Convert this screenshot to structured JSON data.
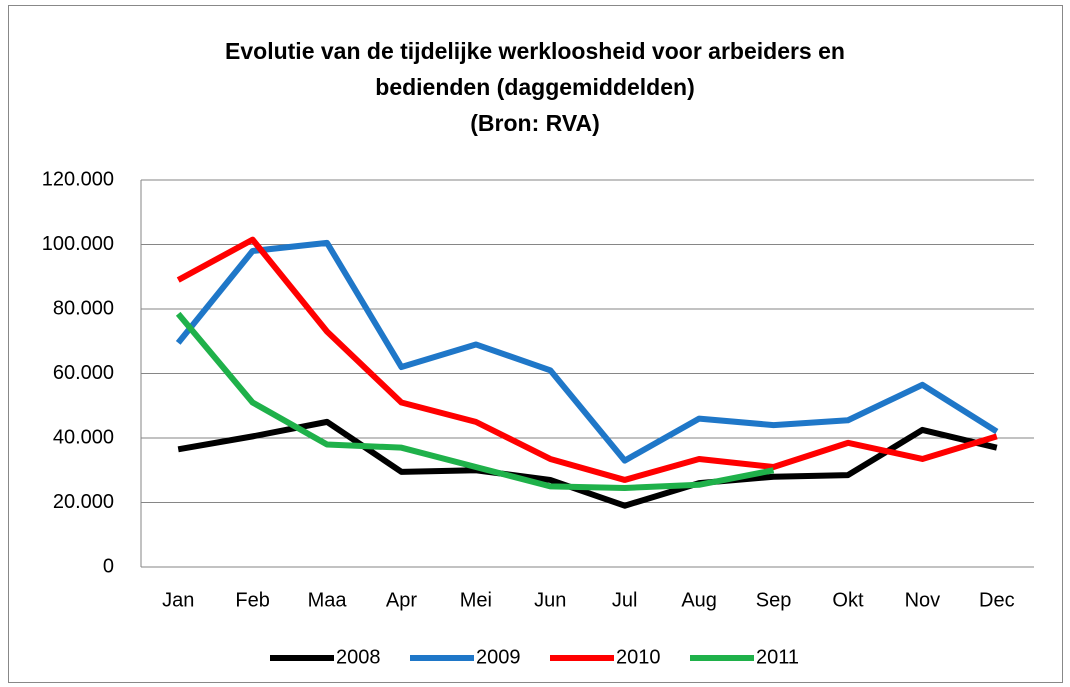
{
  "chart_data": {
    "type": "line",
    "title": "Evolutie van de tijdelijke werkloosheid voor arbeiders en bedienden (daggemiddelden)",
    "subtitle": "(Bron: RVA)",
    "categories": [
      "Jan",
      "Feb",
      "Maa",
      "Apr",
      "Mei",
      "Jun",
      "Jul",
      "Aug",
      "Sep",
      "Okt",
      "Nov",
      "Dec"
    ],
    "series": [
      {
        "name": "2008",
        "color": "#000000",
        "values": [
          36500,
          40500,
          45000,
          29500,
          30000,
          27000,
          19000,
          26000,
          28000,
          28500,
          42500,
          37000
        ]
      },
      {
        "name": "2009",
        "color": "#1f77c8",
        "values": [
          69500,
          98000,
          100500,
          62000,
          69000,
          61000,
          33000,
          46000,
          44000,
          45500,
          56500,
          42000
        ]
      },
      {
        "name": "2010",
        "color": "#ff0000",
        "values": [
          89000,
          101500,
          73000,
          51000,
          45000,
          33500,
          27000,
          33500,
          31000,
          38500,
          33500,
          40500
        ]
      },
      {
        "name": "2011",
        "color": "#1fb14a",
        "values": [
          78500,
          51000,
          38000,
          37000,
          31000,
          25000,
          24500,
          25500,
          30000,
          null,
          null,
          null
        ]
      }
    ],
    "ylim": [
      0,
      120000
    ],
    "yticks": [
      0,
      {
        "value": 20000,
        "label": "20.000"
      },
      {
        "value": 40000,
        "label": "40.000"
      },
      {
        "value": 60000,
        "label": "60.000"
      },
      {
        "value": 80000,
        "label": "80.000"
      },
      {
        "value": 100000,
        "label": "100.000"
      },
      {
        "value": 120000,
        "label": "120.000"
      }
    ],
    "grid": true,
    "legend": "bottom"
  }
}
